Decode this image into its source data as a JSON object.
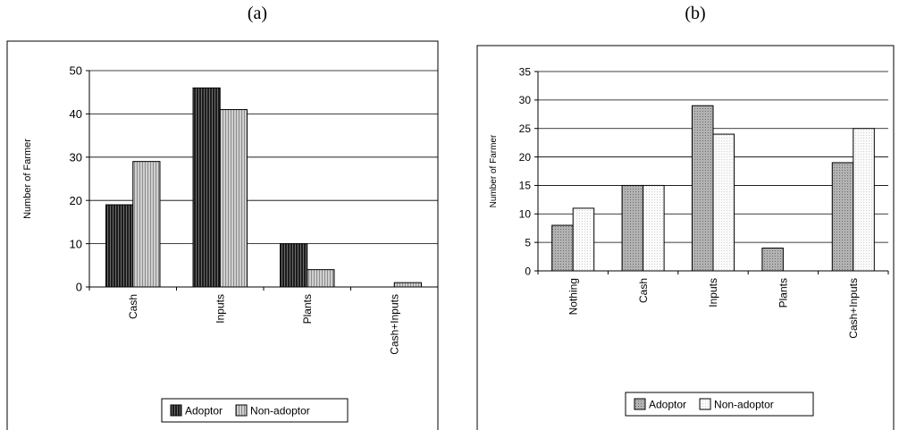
{
  "panels": {
    "a": {
      "label": "(a)"
    },
    "b": {
      "label": "(b)"
    }
  },
  "chart_data": [
    {
      "type": "bar",
      "panel": "(a)",
      "categories": [
        "Cash",
        "Inputs",
        "Plants",
        "Cash+Inputs"
      ],
      "series": [
        {
          "name": "Adoptor",
          "values": [
            19,
            46,
            10,
            0
          ],
          "color": "#3a3a3a",
          "pattern": "vertical-stripes-dark"
        },
        {
          "name": "Non-adoptor",
          "values": [
            29,
            41,
            4,
            1
          ],
          "color": "#b8b8b8",
          "pattern": "vertical-stripes-light"
        }
      ],
      "ylabel": "Number of Farmer",
      "ylim": [
        0,
        50
      ],
      "yticks": [
        0,
        10,
        20,
        30,
        40,
        50
      ],
      "grid": true,
      "legend": "bottom"
    },
    {
      "type": "bar",
      "panel": "(b)",
      "categories": [
        "Nothing",
        "Cash",
        "Inputs",
        "Plants",
        "Cash+Inputs"
      ],
      "series": [
        {
          "name": "Adoptor",
          "values": [
            8,
            15,
            29,
            4,
            19
          ],
          "color": "#a8a8a8",
          "pattern": "dots-gray"
        },
        {
          "name": "Non-adoptor",
          "values": [
            11,
            15,
            24,
            0,
            25
          ],
          "color": "#f4f4f4",
          "pattern": "dots-light"
        }
      ],
      "ylabel": "Number of Farmer",
      "ylim": [
        0,
        35
      ],
      "yticks": [
        0,
        5,
        10,
        15,
        20,
        25,
        30,
        35
      ],
      "grid": true,
      "legend": "bottom"
    }
  ]
}
